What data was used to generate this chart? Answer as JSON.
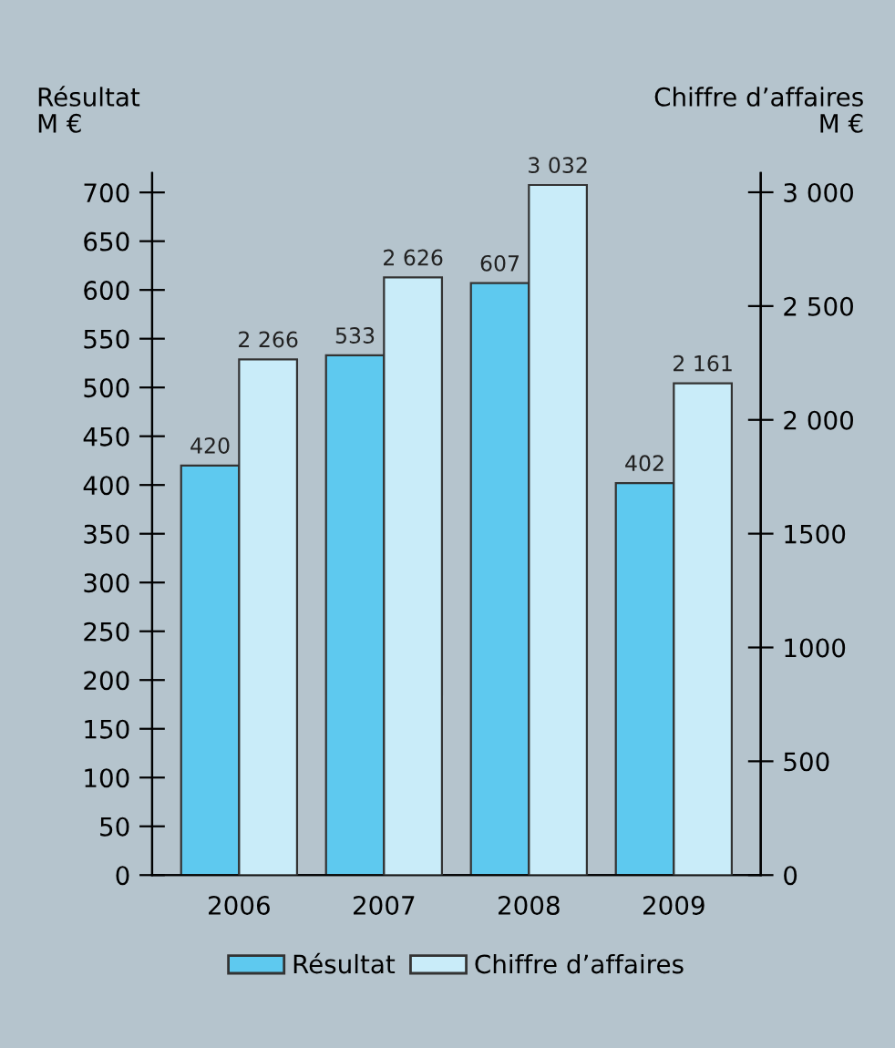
{
  "chart_data": {
    "type": "bar",
    "ylabel": "Résultat\nM €",
    "y2label": "Chiffre d’affaires\nM €",
    "categories": [
      "2006",
      "2007",
      "2008",
      "2009"
    ],
    "series": [
      {
        "name": "Résultat",
        "color": "#5ec9ef",
        "values": [
          420,
          533,
          607,
          402
        ],
        "value_labels": [
          "420",
          "533",
          "607",
          "402"
        ]
      },
      {
        "name": "Chiffre d’affaires",
        "color": "#c9ecf9",
        "axis": "y2",
        "values": [
          2266,
          2626,
          3032,
          2161
        ],
        "value_labels": [
          "2 266",
          "2 626",
          "3 032",
          "2 161"
        ]
      }
    ],
    "ylim": [
      0,
      720
    ],
    "yticks": [
      0,
      50,
      100,
      150,
      200,
      250,
      300,
      350,
      400,
      450,
      500,
      550,
      600,
      650,
      700
    ],
    "y2lim": [
      0,
      3085
    ],
    "y2ticks": [
      0,
      500,
      {
        "value": 1000,
        "label": "1000"
      },
      {
        "value": 1500,
        "label": "1500"
      },
      {
        "value": 2000,
        "label": "2 000"
      },
      {
        "value": 2500,
        "label": "2 500"
      },
      {
        "value": 3000,
        "label": "3 000"
      }
    ],
    "grid": false,
    "legend": "bottom"
  }
}
